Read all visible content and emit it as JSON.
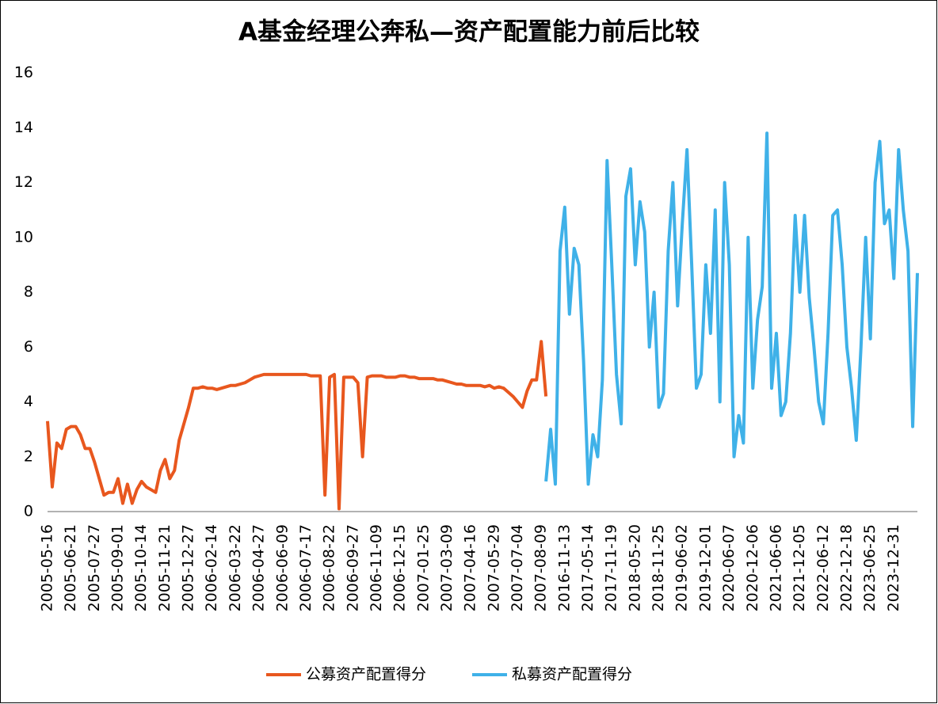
{
  "chart_data": {
    "type": "line",
    "title": "A基金经理公奔私—资产配置能力前后比较",
    "categories": [
      "2005-05-16",
      null,
      null,
      null,
      null,
      "2005-06-21",
      null,
      null,
      null,
      null,
      "2005-07-27",
      null,
      null,
      null,
      null,
      "2005-09-01",
      null,
      null,
      null,
      null,
      "2005-10-14",
      null,
      null,
      null,
      null,
      "2005-11-21",
      null,
      null,
      null,
      null,
      "2005-12-27",
      null,
      null,
      null,
      null,
      "2006-02-14",
      null,
      null,
      null,
      null,
      "2006-03-22",
      null,
      null,
      null,
      null,
      "2006-04-27",
      null,
      null,
      null,
      null,
      "2006-06-09",
      null,
      null,
      null,
      null,
      "2006-07-17",
      null,
      null,
      null,
      null,
      "2006-08-22",
      null,
      null,
      null,
      null,
      "2006-09-27",
      null,
      null,
      null,
      null,
      "2006-11-09",
      null,
      null,
      null,
      null,
      "2006-12-15",
      null,
      null,
      null,
      null,
      "2007-01-25",
      null,
      null,
      null,
      null,
      "2007-03-09",
      null,
      null,
      null,
      null,
      "2007-04-16",
      null,
      null,
      null,
      null,
      "2007-05-29",
      null,
      null,
      null,
      null,
      "2007-07-04",
      null,
      null,
      null,
      null,
      "2007-08-09",
      null,
      null,
      null,
      null,
      "2016-11-13",
      null,
      null,
      null,
      null,
      "2017-05-14",
      null,
      null,
      null,
      null,
      "2017-11-19",
      null,
      null,
      null,
      null,
      "2018-05-20",
      null,
      null,
      null,
      null,
      "2018-11-25",
      null,
      null,
      null,
      null,
      "2019-06-02",
      null,
      null,
      null,
      null,
      "2019-12-01",
      null,
      null,
      null,
      null,
      "2020-06-07",
      null,
      null,
      null,
      null,
      "2020-12-06",
      null,
      null,
      null,
      null,
      "2021-06-06",
      null,
      null,
      null,
      null,
      "2021-12-05",
      null,
      null,
      null,
      null,
      "2022-06-12",
      null,
      null,
      null,
      null,
      "2022-12-18",
      null,
      null,
      null,
      null,
      "2023-06-25",
      null,
      null,
      null,
      null,
      "2023-12-31",
      null,
      null,
      null,
      null,
      null
    ],
    "series": [
      {
        "name": "公募资产配置得分",
        "color": "#e8571e",
        "values": [
          3.3,
          0.9,
          2.5,
          2.3,
          3.0,
          3.1,
          3.1,
          2.8,
          2.3,
          2.3,
          1.8,
          1.2,
          0.6,
          0.7,
          0.7,
          1.2,
          0.3,
          1.0,
          0.3,
          0.8,
          1.1,
          0.9,
          0.8,
          0.7,
          1.5,
          1.9,
          1.2,
          1.5,
          2.6,
          3.2,
          3.8,
          4.5,
          4.5,
          4.55,
          4.5,
          4.5,
          4.45,
          4.5,
          4.55,
          4.6,
          4.6,
          4.65,
          4.7,
          4.8,
          4.9,
          4.95,
          5.0,
          5.0,
          5.0,
          5.0,
          5.0,
          5.0,
          5.0,
          5.0,
          5.0,
          5.0,
          4.95,
          4.95,
          4.95,
          0.6,
          4.9,
          5.0,
          0.1,
          4.9,
          4.9,
          4.9,
          4.7,
          2.0,
          4.9,
          4.95,
          4.95,
          4.95,
          4.9,
          4.9,
          4.9,
          4.95,
          4.95,
          4.9,
          4.9,
          4.85,
          4.85,
          4.85,
          4.85,
          4.8,
          4.8,
          4.75,
          4.7,
          4.65,
          4.65,
          4.6,
          4.6,
          4.6,
          4.6,
          4.55,
          4.6,
          4.5,
          4.55,
          4.5,
          4.35,
          4.2,
          4.0,
          3.8,
          4.4,
          4.8,
          4.8,
          6.2,
          4.2,
          null,
          null,
          null,
          null,
          null,
          null,
          null,
          null,
          null,
          null,
          null,
          null,
          null,
          null,
          null,
          null,
          null,
          null,
          null,
          null,
          null,
          null,
          null,
          null,
          null,
          null,
          null,
          null,
          null,
          null,
          null,
          null,
          null,
          null,
          null,
          null,
          null,
          null,
          null,
          null,
          null,
          null,
          null,
          null,
          null,
          null,
          null,
          null,
          null,
          null,
          null,
          null,
          null,
          null,
          null,
          null,
          null,
          null,
          null,
          null,
          null,
          null,
          null,
          null,
          null,
          null,
          null,
          null,
          null,
          null,
          null,
          null,
          null,
          null,
          null,
          null,
          null,
          null,
          null
        ]
      },
      {
        "name": "私募资产配置得分",
        "color": "#3fb1e8",
        "values": [
          null,
          null,
          null,
          null,
          null,
          null,
          null,
          null,
          null,
          null,
          null,
          null,
          null,
          null,
          null,
          null,
          null,
          null,
          null,
          null,
          null,
          null,
          null,
          null,
          null,
          null,
          null,
          null,
          null,
          null,
          null,
          null,
          null,
          null,
          null,
          null,
          null,
          null,
          null,
          null,
          null,
          null,
          null,
          null,
          null,
          null,
          null,
          null,
          null,
          null,
          null,
          null,
          null,
          null,
          null,
          null,
          null,
          null,
          null,
          null,
          null,
          null,
          null,
          null,
          null,
          null,
          null,
          null,
          null,
          null,
          null,
          null,
          null,
          null,
          null,
          null,
          null,
          null,
          null,
          null,
          null,
          null,
          null,
          null,
          null,
          null,
          null,
          null,
          null,
          null,
          null,
          null,
          null,
          null,
          null,
          null,
          null,
          null,
          null,
          null,
          null,
          null,
          null,
          null,
          null,
          null,
          1.1,
          3.0,
          1.0,
          9.5,
          11.1,
          7.2,
          9.6,
          9.0,
          5.5,
          1.0,
          2.8,
          2.0,
          4.8,
          12.8,
          9.0,
          5.0,
          3.2,
          11.5,
          12.5,
          9.0,
          11.3,
          10.2,
          6.0,
          8.0,
          3.8,
          4.3,
          9.5,
          12.0,
          7.5,
          10.5,
          13.2,
          9.0,
          4.5,
          5.0,
          9.0,
          6.5,
          11.0,
          4.0,
          12.0,
          9.0,
          2.0,
          3.5,
          2.5,
          10.0,
          4.5,
          7.0,
          8.2,
          13.8,
          4.5,
          6.5,
          3.5,
          4.0,
          6.5,
          10.8,
          8.0,
          10.8,
          7.8,
          6.0,
          4.0,
          3.2,
          6.5,
          10.8,
          11.0,
          9.0,
          6.0,
          4.5,
          2.6,
          6.0,
          10.0,
          6.3,
          12.0,
          13.5,
          10.5,
          11.0,
          8.5,
          13.2,
          11.0,
          9.5,
          3.1,
          8.7
        ]
      }
    ],
    "ylim": [
      0,
      16
    ],
    "yticks": [
      0,
      2,
      4,
      6,
      8,
      10,
      12,
      14,
      16
    ],
    "grid": false,
    "legend": "bottom"
  }
}
